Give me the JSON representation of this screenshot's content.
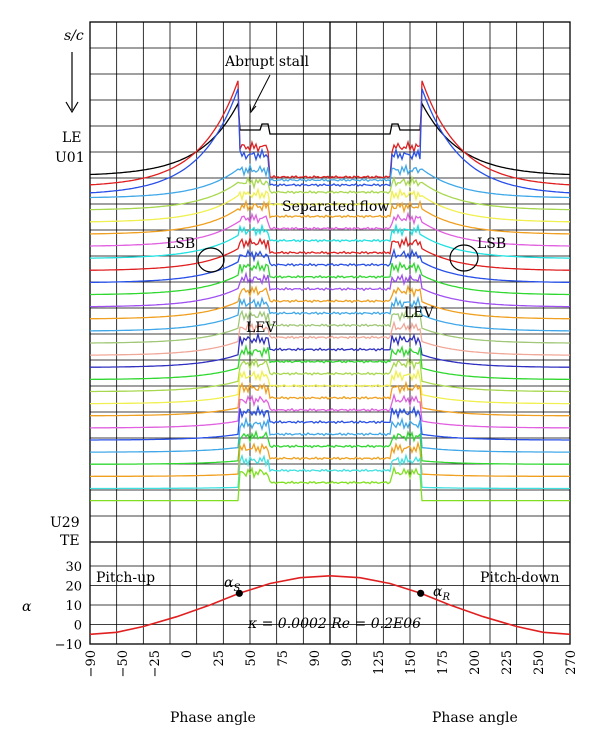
{
  "chart_data": {
    "type": "line",
    "upper_panel": {
      "y_axis_label": "s/c",
      "top_label": "LE",
      "first_trace_label": "U01",
      "last_trace_label": "U29",
      "bottom_label": "TE",
      "trace_count": 29,
      "trace_colors": [
        "#000000",
        "#e02020",
        "#2850e8",
        "#40a8e8",
        "#a8d850",
        "#f0f050",
        "#f0a020",
        "#e060e0",
        "#20e0e0",
        "#e02020",
        "#2850e8",
        "#30d830",
        "#a050f0",
        "#f0a020",
        "#40a8e8",
        "#a0c878",
        "#f0a898",
        "#3030c0",
        "#30d830",
        "#a8d850",
        "#f0f050",
        "#f0a020",
        "#e060e0",
        "#2850e8",
        "#40a8e8",
        "#30d830",
        "#f0a020",
        "#40e0e0",
        "#80e020"
      ],
      "annotations": [
        "Abrupt stall",
        "Separated flow",
        "LSB",
        "LSB",
        "LEV",
        "LEV"
      ]
    },
    "lower_panel": {
      "y_label": "α",
      "yticks": [
        30,
        20,
        10,
        0,
        -10
      ],
      "ylim": [
        -10,
        30
      ],
      "left_label": "Pitch-up",
      "right_label": "Pitch-down",
      "marker_labels": [
        "α",
        "α"
      ],
      "marker_subscripts": [
        "S",
        "R"
      ],
      "marker_points": [
        {
          "label": "αS",
          "x": 22,
          "y": 16
        },
        {
          "label": "αR",
          "x": 158,
          "y": 16
        }
      ],
      "params_text": "κ = 0.0002   Re = 0.2E06",
      "series": [
        {
          "color": "#e02020",
          "points": [
            [
              -90,
              -5
            ],
            [
              -70,
              -4
            ],
            [
              -50,
              -1
            ],
            [
              -25,
              4
            ],
            [
              0,
              10
            ],
            [
              22,
              16
            ],
            [
              45,
              21
            ],
            [
              67.5,
              24
            ],
            [
              90,
              25
            ],
            [
              112.5,
              24
            ],
            [
              135,
              21
            ],
            [
              158,
              16
            ],
            [
              180,
              10
            ],
            [
              205,
              4
            ],
            [
              230,
              -1
            ],
            [
              250,
              -4
            ],
            [
              270,
              -5
            ]
          ]
        }
      ]
    },
    "x_axis": {
      "xlabel_left": "Phase angle",
      "xlabel_right": "Phase angle",
      "left_ticks": [
        "−90",
        "−50",
        "−25",
        "0",
        "25",
        "50",
        "75",
        "90"
      ],
      "right_ticks": [
        "90",
        "125",
        "150",
        "175",
        "200",
        "225",
        "250",
        "270"
      ],
      "xlim": [
        -90,
        270
      ]
    }
  }
}
